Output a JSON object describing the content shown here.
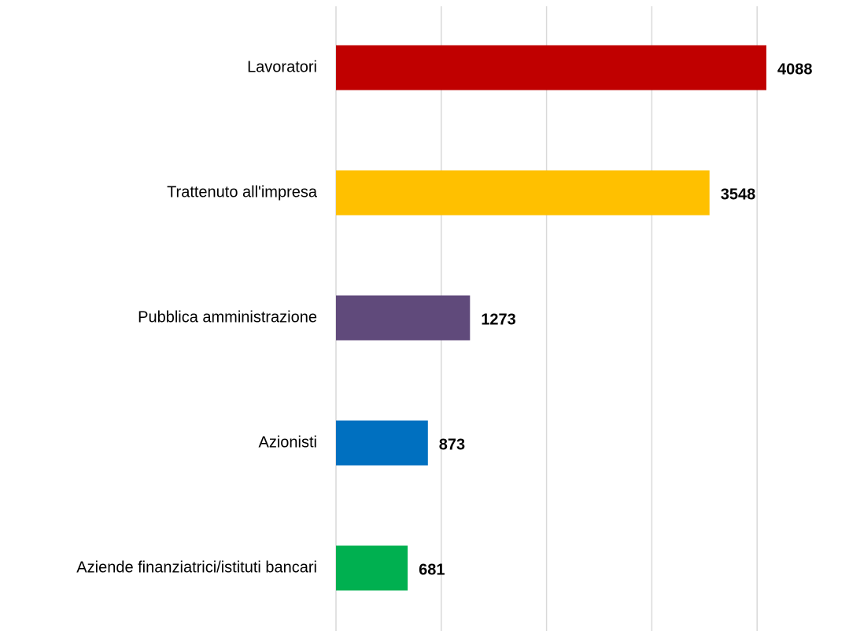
{
  "chart_data": {
    "type": "bar",
    "orientation": "horizontal",
    "categories": [
      "Lavoratori",
      "Trattenuto all'impresa",
      "Pubblica amministrazione",
      "Azionisti",
      "Aziende finanziatrici/istituti bancari"
    ],
    "values": [
      4088,
      3548,
      1273,
      873,
      681
    ],
    "colors": [
      "#c00000",
      "#ffc000",
      "#604a7b",
      "#0070c0",
      "#00b050"
    ],
    "xlim": [
      0,
      4500
    ],
    "xticks": [
      0,
      1000,
      2000,
      3000,
      4000
    ],
    "grid": true
  }
}
